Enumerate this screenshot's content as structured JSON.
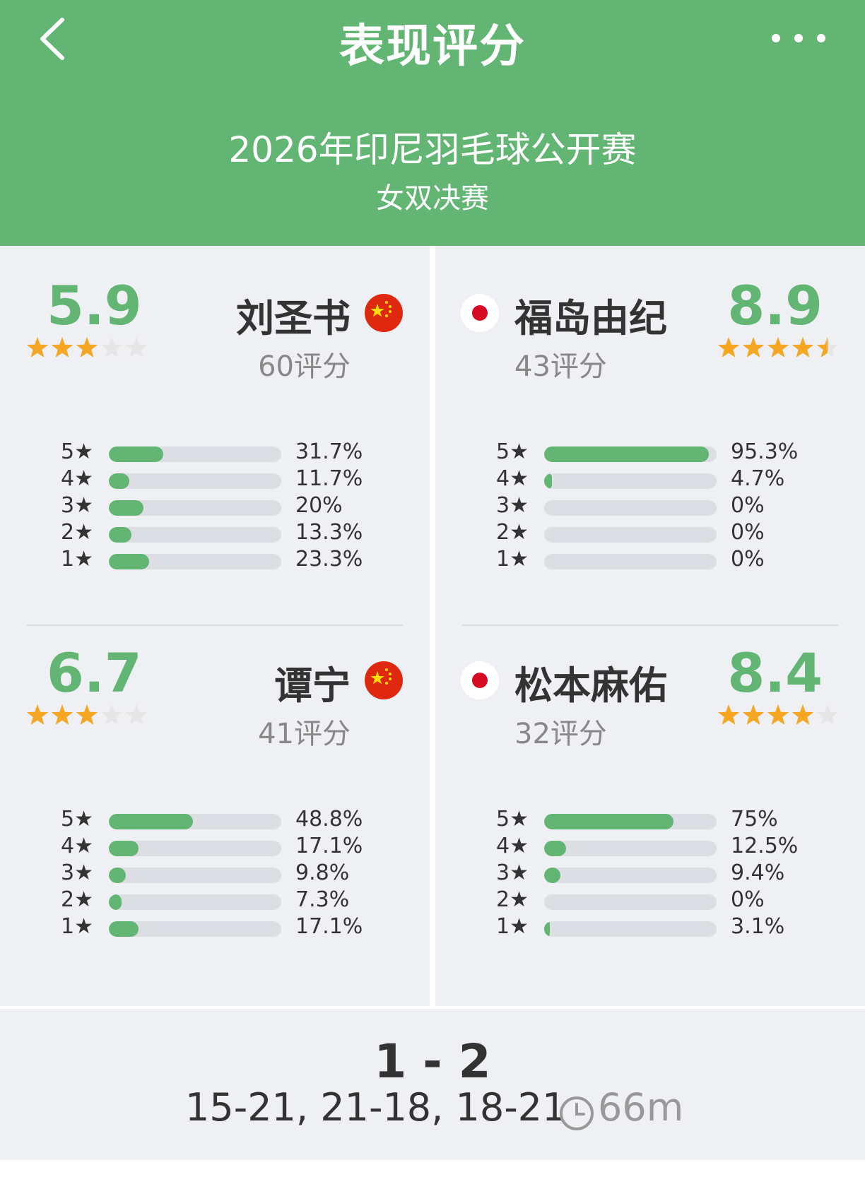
{
  "header": {
    "title": "表现评分",
    "tournament": "2026年印尼羽毛球公开赛",
    "round": "女双决赛",
    "back_icon": "chevron-left-icon",
    "more_icon": "more-dots-icon"
  },
  "colors": {
    "accent": "#62b573",
    "track": "#dcdee3",
    "star": "#f5a623",
    "panel": "#eff0f4"
  },
  "players": [
    {
      "name": "刘圣书",
      "country": "China",
      "flag_icon": "china-flag-icon",
      "score": "5.9",
      "rating_count": "60评分",
      "stars": 3,
      "distribution": [
        {
          "label": "5★",
          "value": 31.7,
          "text": "31.7%"
        },
        {
          "label": "4★",
          "value": 11.7,
          "text": "11.7%"
        },
        {
          "label": "3★",
          "value": 20,
          "text": "20%"
        },
        {
          "label": "2★",
          "value": 13.3,
          "text": "13.3%"
        },
        {
          "label": "1★",
          "value": 23.3,
          "text": "23.3%"
        }
      ]
    },
    {
      "name": "谭宁",
      "country": "China",
      "flag_icon": "china-flag-icon",
      "score": "6.7",
      "rating_count": "41评分",
      "stars": 3,
      "distribution": [
        {
          "label": "5★",
          "value": 48.8,
          "text": "48.8%"
        },
        {
          "label": "4★",
          "value": 17.1,
          "text": "17.1%"
        },
        {
          "label": "3★",
          "value": 9.8,
          "text": "9.8%"
        },
        {
          "label": "2★",
          "value": 7.3,
          "text": "7.3%"
        },
        {
          "label": "1★",
          "value": 17.1,
          "text": "17.1%"
        }
      ]
    },
    {
      "name": "福岛由纪",
      "country": "Japan",
      "flag_icon": "japan-flag-icon",
      "score": "8.9",
      "rating_count": "43评分",
      "stars": 4.5,
      "distribution": [
        {
          "label": "5★",
          "value": 95.3,
          "text": "95.3%"
        },
        {
          "label": "4★",
          "value": 4.7,
          "text": "4.7%"
        },
        {
          "label": "3★",
          "value": 0,
          "text": "0%"
        },
        {
          "label": "2★",
          "value": 0,
          "text": "0%"
        },
        {
          "label": "1★",
          "value": 0,
          "text": "0%"
        }
      ]
    },
    {
      "name": "松本麻佑",
      "country": "Japan",
      "flag_icon": "japan-flag-icon",
      "score": "8.4",
      "rating_count": "32评分",
      "stars": 4,
      "distribution": [
        {
          "label": "5★",
          "value": 75,
          "text": "75%"
        },
        {
          "label": "4★",
          "value": 12.5,
          "text": "12.5%"
        },
        {
          "label": "3★",
          "value": 9.4,
          "text": "9.4%"
        },
        {
          "label": "2★",
          "value": 0,
          "text": "0%"
        },
        {
          "label": "1★",
          "value": 3.1,
          "text": "3.1%"
        }
      ]
    }
  ],
  "footer": {
    "result": "1 - 2",
    "sets": "15-21, 21-18, 18-21",
    "duration": "66m",
    "clock_icon": "clock-icon"
  }
}
